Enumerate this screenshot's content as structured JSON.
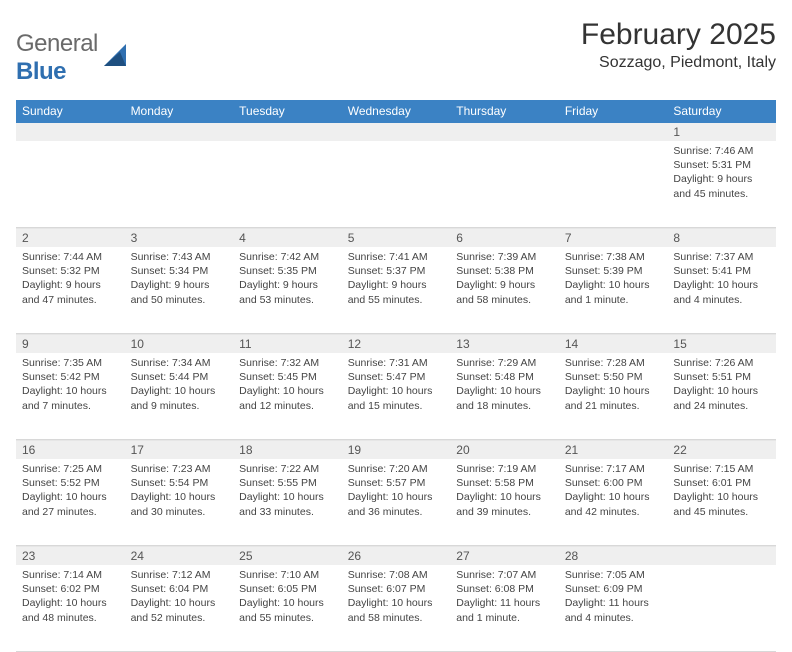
{
  "logo": {
    "text1": "General",
    "text2": "Blue"
  },
  "title": "February 2025",
  "location": "Sozzago, Piedmont, Italy",
  "colors": {
    "header_bg": "#3b82c4",
    "header_text": "#ffffff",
    "body_text": "#444444",
    "num_bar_bg": "#efefef",
    "border": "#d8d8d8",
    "logo_gray": "#6a6a6a",
    "logo_blue": "#2f6fb0"
  },
  "dow": [
    "Sunday",
    "Monday",
    "Tuesday",
    "Wednesday",
    "Thursday",
    "Friday",
    "Saturday"
  ],
  "weeks": [
    {
      "nums": [
        "",
        "",
        "",
        "",
        "",
        "",
        "1"
      ],
      "cells": [
        null,
        null,
        null,
        null,
        null,
        null,
        {
          "sunrise": "Sunrise: 7:46 AM",
          "sunset": "Sunset: 5:31 PM",
          "day1": "Daylight: 9 hours",
          "day2": "and 45 minutes."
        }
      ]
    },
    {
      "nums": [
        "2",
        "3",
        "4",
        "5",
        "6",
        "7",
        "8"
      ],
      "cells": [
        {
          "sunrise": "Sunrise: 7:44 AM",
          "sunset": "Sunset: 5:32 PM",
          "day1": "Daylight: 9 hours",
          "day2": "and 47 minutes."
        },
        {
          "sunrise": "Sunrise: 7:43 AM",
          "sunset": "Sunset: 5:34 PM",
          "day1": "Daylight: 9 hours",
          "day2": "and 50 minutes."
        },
        {
          "sunrise": "Sunrise: 7:42 AM",
          "sunset": "Sunset: 5:35 PM",
          "day1": "Daylight: 9 hours",
          "day2": "and 53 minutes."
        },
        {
          "sunrise": "Sunrise: 7:41 AM",
          "sunset": "Sunset: 5:37 PM",
          "day1": "Daylight: 9 hours",
          "day2": "and 55 minutes."
        },
        {
          "sunrise": "Sunrise: 7:39 AM",
          "sunset": "Sunset: 5:38 PM",
          "day1": "Daylight: 9 hours",
          "day2": "and 58 minutes."
        },
        {
          "sunrise": "Sunrise: 7:38 AM",
          "sunset": "Sunset: 5:39 PM",
          "day1": "Daylight: 10 hours",
          "day2": "and 1 minute."
        },
        {
          "sunrise": "Sunrise: 7:37 AM",
          "sunset": "Sunset: 5:41 PM",
          "day1": "Daylight: 10 hours",
          "day2": "and 4 minutes."
        }
      ]
    },
    {
      "nums": [
        "9",
        "10",
        "11",
        "12",
        "13",
        "14",
        "15"
      ],
      "cells": [
        {
          "sunrise": "Sunrise: 7:35 AM",
          "sunset": "Sunset: 5:42 PM",
          "day1": "Daylight: 10 hours",
          "day2": "and 7 minutes."
        },
        {
          "sunrise": "Sunrise: 7:34 AM",
          "sunset": "Sunset: 5:44 PM",
          "day1": "Daylight: 10 hours",
          "day2": "and 9 minutes."
        },
        {
          "sunrise": "Sunrise: 7:32 AM",
          "sunset": "Sunset: 5:45 PM",
          "day1": "Daylight: 10 hours",
          "day2": "and 12 minutes."
        },
        {
          "sunrise": "Sunrise: 7:31 AM",
          "sunset": "Sunset: 5:47 PM",
          "day1": "Daylight: 10 hours",
          "day2": "and 15 minutes."
        },
        {
          "sunrise": "Sunrise: 7:29 AM",
          "sunset": "Sunset: 5:48 PM",
          "day1": "Daylight: 10 hours",
          "day2": "and 18 minutes."
        },
        {
          "sunrise": "Sunrise: 7:28 AM",
          "sunset": "Sunset: 5:50 PM",
          "day1": "Daylight: 10 hours",
          "day2": "and 21 minutes."
        },
        {
          "sunrise": "Sunrise: 7:26 AM",
          "sunset": "Sunset: 5:51 PM",
          "day1": "Daylight: 10 hours",
          "day2": "and 24 minutes."
        }
      ]
    },
    {
      "nums": [
        "16",
        "17",
        "18",
        "19",
        "20",
        "21",
        "22"
      ],
      "cells": [
        {
          "sunrise": "Sunrise: 7:25 AM",
          "sunset": "Sunset: 5:52 PM",
          "day1": "Daylight: 10 hours",
          "day2": "and 27 minutes."
        },
        {
          "sunrise": "Sunrise: 7:23 AM",
          "sunset": "Sunset: 5:54 PM",
          "day1": "Daylight: 10 hours",
          "day2": "and 30 minutes."
        },
        {
          "sunrise": "Sunrise: 7:22 AM",
          "sunset": "Sunset: 5:55 PM",
          "day1": "Daylight: 10 hours",
          "day2": "and 33 minutes."
        },
        {
          "sunrise": "Sunrise: 7:20 AM",
          "sunset": "Sunset: 5:57 PM",
          "day1": "Daylight: 10 hours",
          "day2": "and 36 minutes."
        },
        {
          "sunrise": "Sunrise: 7:19 AM",
          "sunset": "Sunset: 5:58 PM",
          "day1": "Daylight: 10 hours",
          "day2": "and 39 minutes."
        },
        {
          "sunrise": "Sunrise: 7:17 AM",
          "sunset": "Sunset: 6:00 PM",
          "day1": "Daylight: 10 hours",
          "day2": "and 42 minutes."
        },
        {
          "sunrise": "Sunrise: 7:15 AM",
          "sunset": "Sunset: 6:01 PM",
          "day1": "Daylight: 10 hours",
          "day2": "and 45 minutes."
        }
      ]
    },
    {
      "nums": [
        "23",
        "24",
        "25",
        "26",
        "27",
        "28",
        ""
      ],
      "cells": [
        {
          "sunrise": "Sunrise: 7:14 AM",
          "sunset": "Sunset: 6:02 PM",
          "day1": "Daylight: 10 hours",
          "day2": "and 48 minutes."
        },
        {
          "sunrise": "Sunrise: 7:12 AM",
          "sunset": "Sunset: 6:04 PM",
          "day1": "Daylight: 10 hours",
          "day2": "and 52 minutes."
        },
        {
          "sunrise": "Sunrise: 7:10 AM",
          "sunset": "Sunset: 6:05 PM",
          "day1": "Daylight: 10 hours",
          "day2": "and 55 minutes."
        },
        {
          "sunrise": "Sunrise: 7:08 AM",
          "sunset": "Sunset: 6:07 PM",
          "day1": "Daylight: 10 hours",
          "day2": "and 58 minutes."
        },
        {
          "sunrise": "Sunrise: 7:07 AM",
          "sunset": "Sunset: 6:08 PM",
          "day1": "Daylight: 11 hours",
          "day2": "and 1 minute."
        },
        {
          "sunrise": "Sunrise: 7:05 AM",
          "sunset": "Sunset: 6:09 PM",
          "day1": "Daylight: 11 hours",
          "day2": "and 4 minutes."
        },
        null
      ]
    }
  ]
}
